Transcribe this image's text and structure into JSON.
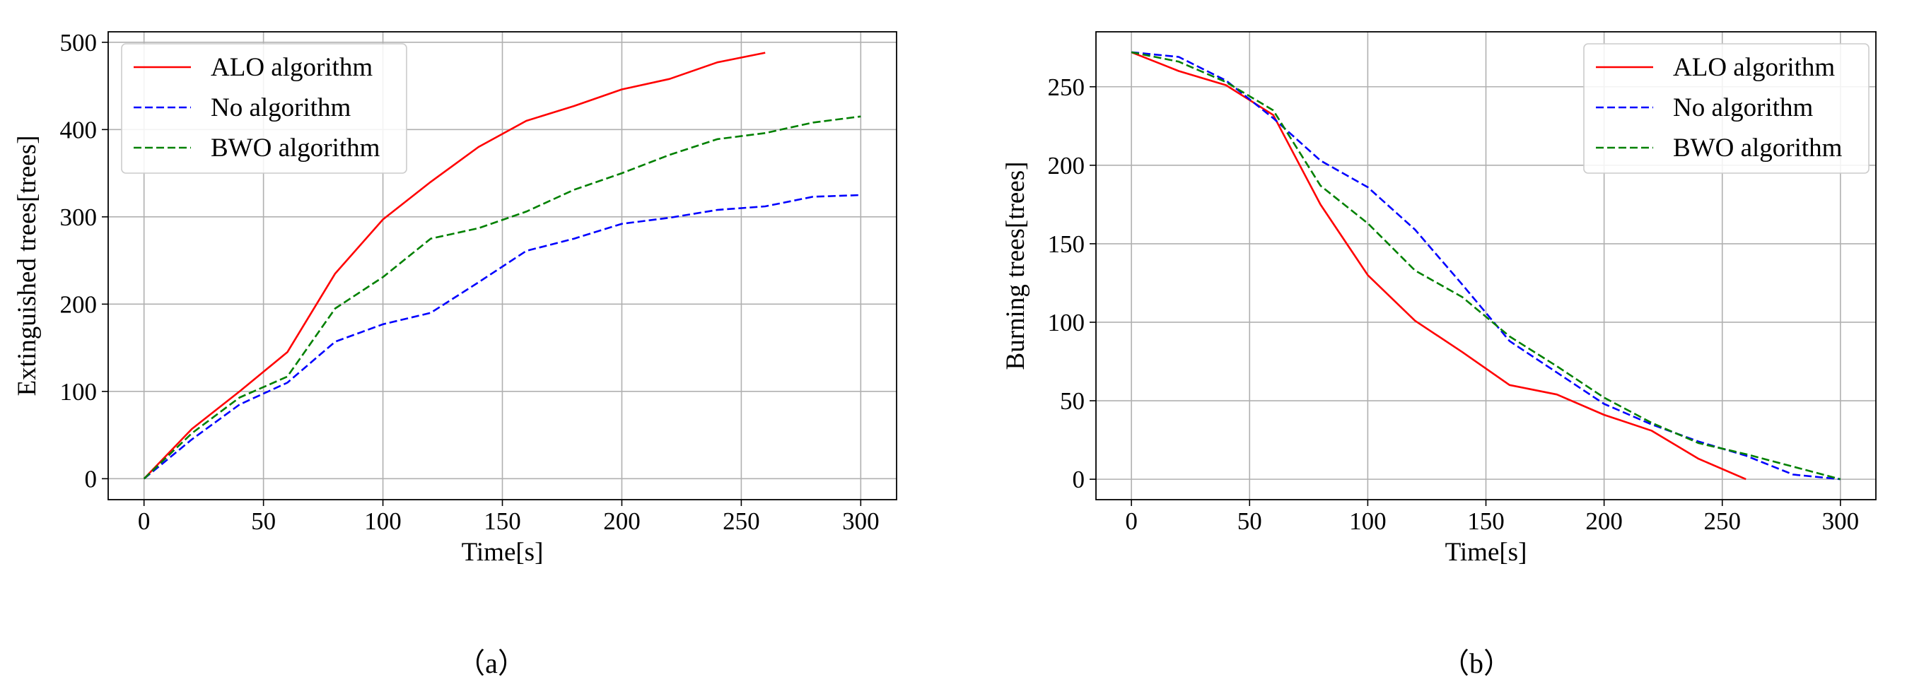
{
  "colors": {
    "alo": "#ff0000",
    "no_alg": "#0000ff",
    "bwo": "#008000",
    "grid": "#b0b0b0",
    "frame": "#000000"
  },
  "chart_data": [
    {
      "type": "line",
      "caption": "（a）",
      "xlabel": "Time[s]",
      "ylabel": "Extinguished trees[trees]",
      "xlim": [
        -15,
        315
      ],
      "ylim": [
        -24,
        512
      ],
      "xticks": [
        0,
        50,
        100,
        150,
        200,
        250,
        300
      ],
      "yticks": [
        0,
        100,
        200,
        300,
        400,
        500
      ],
      "grid": true,
      "legend_position": "top-left",
      "series": [
        {
          "name": "ALO algorithm",
          "color": "#ff0000",
          "style": "solid",
          "x": [
            0,
            20,
            40,
            60,
            80,
            100,
            120,
            140,
            160,
            180,
            200,
            220,
            240,
            260
          ],
          "y": [
            0,
            57,
            100,
            145,
            235,
            297,
            340,
            380,
            410,
            427,
            446,
            458,
            477,
            488
          ]
        },
        {
          "name": "No algorithm",
          "color": "#0000ff",
          "style": "dashed",
          "x": [
            0,
            20,
            40,
            60,
            80,
            100,
            120,
            140,
            160,
            180,
            200,
            220,
            240,
            260,
            280,
            300
          ],
          "y": [
            0,
            45,
            85,
            110,
            157,
            177,
            190,
            225,
            261,
            275,
            292,
            299,
            308,
            312,
            323,
            325
          ]
        },
        {
          "name": "BWO algorithm",
          "color": "#008000",
          "style": "dashed",
          "x": [
            0,
            20,
            40,
            60,
            80,
            100,
            120,
            140,
            160,
            180,
            200,
            220,
            240,
            260,
            280,
            300
          ],
          "y": [
            0,
            52,
            93,
            117,
            195,
            231,
            275,
            287,
            306,
            331,
            350,
            371,
            389,
            396,
            408,
            415
          ]
        }
      ]
    },
    {
      "type": "line",
      "caption": "（b）",
      "xlabel": "Time[s]",
      "ylabel": "Burning trees[trees]",
      "xlim": [
        -15,
        315
      ],
      "ylim": [
        -13,
        285
      ],
      "xticks": [
        0,
        50,
        100,
        150,
        200,
        250,
        300
      ],
      "yticks": [
        0,
        50,
        100,
        150,
        200,
        250
      ],
      "grid": true,
      "legend_position": "top-right",
      "series": [
        {
          "name": "ALO algorithm",
          "color": "#ff0000",
          "style": "solid",
          "x": [
            0,
            20,
            40,
            60,
            80,
            100,
            120,
            140,
            160,
            180,
            200,
            220,
            240,
            260
          ],
          "y": [
            272,
            260,
            251,
            232,
            175,
            130,
            101,
            81,
            60,
            54,
            41,
            31,
            13,
            0
          ]
        },
        {
          "name": "No algorithm",
          "color": "#0000ff",
          "style": "dashed",
          "x": [
            0,
            20,
            40,
            60,
            80,
            100,
            120,
            140,
            160,
            180,
            200,
            220,
            240,
            260,
            280,
            300
          ],
          "y": [
            272,
            269,
            254,
            230,
            203,
            186,
            159,
            124,
            88,
            68,
            48,
            35,
            24,
            15,
            3,
            0
          ]
        },
        {
          "name": "BWO algorithm",
          "color": "#008000",
          "style": "dashed",
          "x": [
            0,
            20,
            40,
            60,
            80,
            100,
            120,
            140,
            160,
            180,
            200,
            220,
            240,
            260,
            280,
            300
          ],
          "y": [
            272,
            266,
            253,
            235,
            187,
            163,
            133,
            116,
            91,
            72,
            52,
            36,
            23,
            16,
            8,
            0
          ]
        }
      ]
    }
  ]
}
